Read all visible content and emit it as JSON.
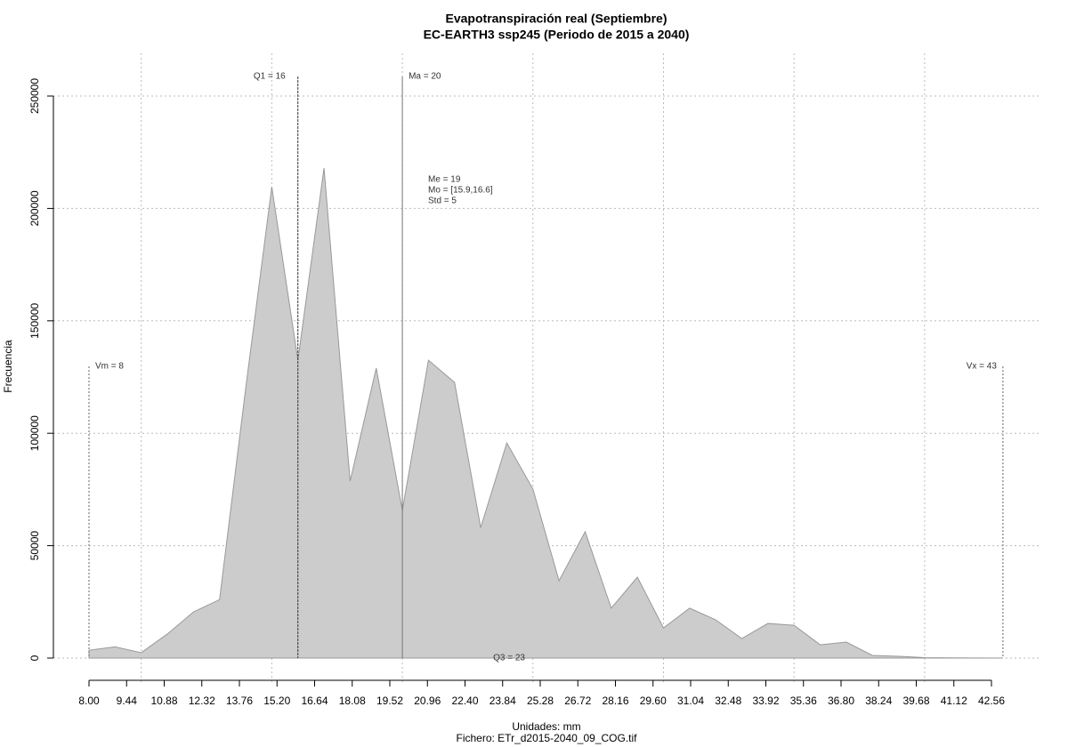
{
  "chart_data": {
    "type": "area",
    "title": "Evapotranspiración real (Septiembre)",
    "subtitle": "EC-EARTH3 ssp245 (Periodo de 2015 a 2040)",
    "x_label": "Unidades: mm",
    "caption": "Fichero: ETr_d2015-2040_09_COG.tif",
    "y_label": "Frecuencia",
    "color": "#cccccc",
    "x": [
      8,
      9,
      10,
      11,
      12,
      13,
      14,
      15,
      16,
      17,
      18,
      19,
      20,
      21,
      22,
      23,
      24,
      25,
      26,
      27,
      28,
      29,
      30,
      31,
      32,
      33,
      34,
      35,
      36,
      37,
      38,
      39,
      40,
      41,
      42,
      43
    ],
    "values": [
      3500,
      5000,
      2400,
      10700,
      20500,
      26000,
      120000,
      209600,
      132500,
      218000,
      78700,
      129000,
      65700,
      132500,
      122600,
      58000,
      95700,
      75200,
      34400,
      56200,
      22200,
      36000,
      13400,
      22200,
      17000,
      8700,
      15400,
      14600,
      5900,
      7100,
      1200,
      800,
      200,
      100,
      50,
      0
    ],
    "xlim": [
      8,
      42.56
    ],
    "ylim": [
      0,
      250000
    ],
    "xticks": [
      {
        "value": 8.0,
        "label": "8.00"
      },
      {
        "value": 9.44,
        "label": "9.44"
      },
      {
        "value": 10.88,
        "label": "10.88"
      },
      {
        "value": 12.32,
        "label": "12.32"
      },
      {
        "value": 13.76,
        "label": "13.76"
      },
      {
        "value": 15.2,
        "label": "15.20"
      },
      {
        "value": 16.64,
        "label": "16.64"
      },
      {
        "value": 18.08,
        "label": "18.08"
      },
      {
        "value": 19.52,
        "label": "19.52"
      },
      {
        "value": 20.96,
        "label": "20.96"
      },
      {
        "value": 22.4,
        "label": "22.40"
      },
      {
        "value": 23.84,
        "label": "23.84"
      },
      {
        "value": 25.28,
        "label": "25.28"
      },
      {
        "value": 26.72,
        "label": "26.72"
      },
      {
        "value": 28.16,
        "label": "28.16"
      },
      {
        "value": 29.6,
        "label": "29.60"
      },
      {
        "value": 31.04,
        "label": "31.04"
      },
      {
        "value": 32.48,
        "label": "32.48"
      },
      {
        "value": 33.92,
        "label": "33.92"
      },
      {
        "value": 35.36,
        "label": "35.36"
      },
      {
        "value": 36.8,
        "label": "36.80"
      },
      {
        "value": 38.24,
        "label": "38.24"
      },
      {
        "value": 39.68,
        "label": "39.68"
      },
      {
        "value": 41.12,
        "label": "41.12"
      },
      {
        "value": 42.56,
        "label": "42.56"
      }
    ],
    "yticks": [
      0,
      50000,
      100000,
      150000,
      200000,
      250000
    ],
    "xgrid": [
      10,
      15,
      20,
      25,
      30,
      35,
      40
    ],
    "grid": true,
    "annotations": [
      {
        "label": "Vm = 8",
        "x": 8
      },
      {
        "label": "Q1 = 16",
        "x": 16
      },
      {
        "label": "Ma = 20",
        "x": 20
      },
      {
        "label": "Q3 = 23",
        "x": 23
      },
      {
        "label": "Vx = 43",
        "x": 43
      }
    ],
    "stats": [
      "Me = 19",
      "Mo = [15.9,16.6]",
      "Std = 5"
    ]
  }
}
